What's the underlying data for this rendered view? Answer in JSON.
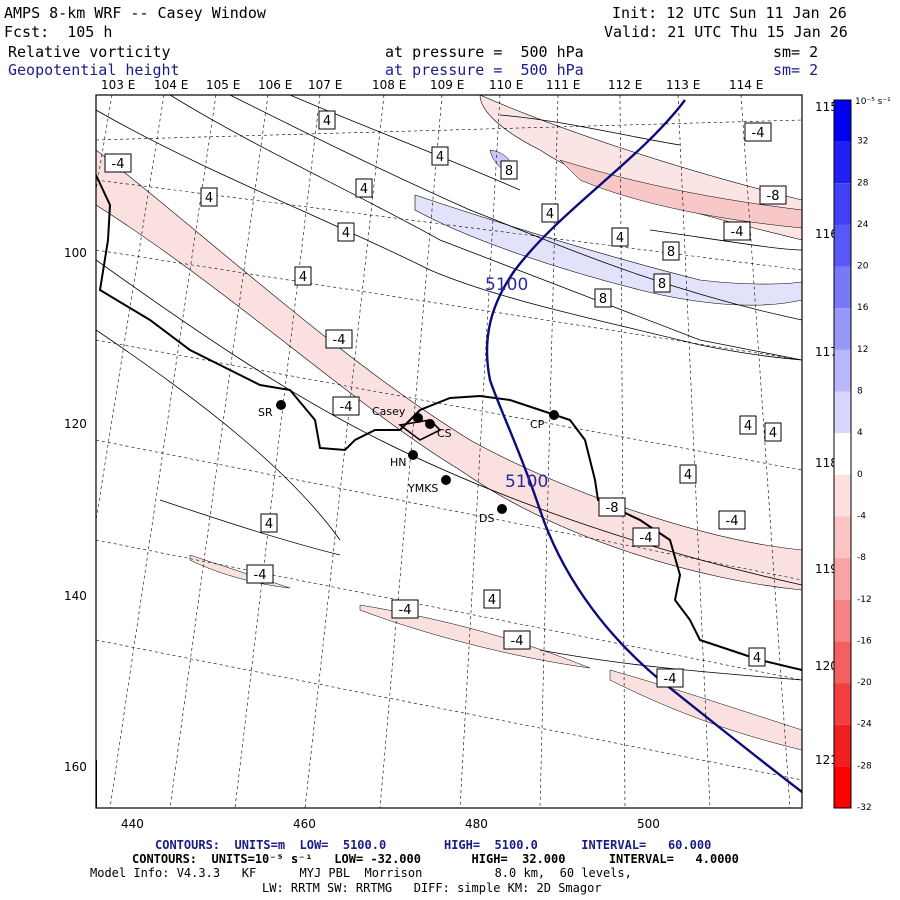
{
  "header": {
    "title": "AMPS 8-km WRF -- Casey Window",
    "init": "Init: 12 UTC Sun 11 Jan 26",
    "fcst": "Fcst:  105 h",
    "valid": "Valid: 21 UTC Thu 15 Jan 26",
    "field1": "Relative vorticity",
    "field1_pressure": "at pressure =  500 hPa",
    "field1_sm": "sm= 2",
    "field2": "Geopotential height",
    "field2_pressure": "at pressure =  500 hPa",
    "field2_sm": "sm= 2"
  },
  "lon_labels": [
    "103 E",
    "104 E",
    "105 E",
    "106 E",
    "107 E",
    "108 E",
    "109 E",
    "110 E",
    "111 E",
    "112 E",
    "113 E",
    "114 E"
  ],
  "right_lon_labels": [
    "115 E",
    "116 E",
    "117 E",
    "118 E",
    "119 E",
    "120 E",
    "121 E"
  ],
  "x_ticks": [
    "440",
    "460",
    "480",
    "500"
  ],
  "y_ticks": [
    "100",
    "120",
    "140",
    "160"
  ],
  "stations": [
    {
      "name": "SR"
    },
    {
      "name": "Casey"
    },
    {
      "name": "CS"
    },
    {
      "name": "HN"
    },
    {
      "name": "YMKS"
    },
    {
      "name": "CP"
    },
    {
      "name": "DS"
    }
  ],
  "height_labels": [
    "5100",
    "5100"
  ],
  "vort_labels": [
    "4",
    "4",
    "4",
    "4",
    "4",
    "4",
    "4",
    "4",
    "4",
    "4",
    "4",
    "4",
    "4",
    "4",
    "4",
    "4",
    "4",
    "-4",
    "-4",
    "-4",
    "-4",
    "-4",
    "-4",
    "-4",
    "-4",
    "-4",
    "-4",
    "-4",
    "8",
    "8",
    "8",
    "8",
    "-8",
    "-8"
  ],
  "colorbar": {
    "unit": "10⁻⁵ s⁻¹",
    "ticks": [
      "32",
      "28",
      "24",
      "20",
      "16",
      "12",
      "8",
      "4",
      "0",
      "-4",
      "-8",
      "-12",
      "-16",
      "-20",
      "-24",
      "-28",
      "-32"
    ],
    "colors": [
      "#0000f0",
      "#2020f4",
      "#4040f5",
      "#5858f6",
      "#7878f8",
      "#9898fa",
      "#b8b8fc",
      "#d8d8fe",
      "#ffffff",
      "#fde0e0",
      "#fbc4c4",
      "#f8a4a4",
      "#f68484",
      "#f46060",
      "#f24040",
      "#f02020",
      "#ff0000"
    ]
  },
  "colors": {
    "height_contour": "#0b0b7a",
    "positive_fill": "#fbe0e0",
    "negative_fill": "#e2e2fb"
  },
  "footer": {
    "line1": "CONTOURS:  UNITS=m  LOW=  5100.0        HIGH=  5100.0      INTERVAL=   60.000",
    "line2": "CONTOURS:  UNITS=10⁻⁵ s⁻¹   LOW= -32.000       HIGH=  32.000      INTERVAL=   4.0000",
    "line3": "Model Info: V4.3.3   KF      MYJ PBL  Morrison          8.0 km,  60 levels,",
    "line4": "LW: RRTM SW: RRTMG   DIFF: simple KM: 2D Smagor"
  }
}
